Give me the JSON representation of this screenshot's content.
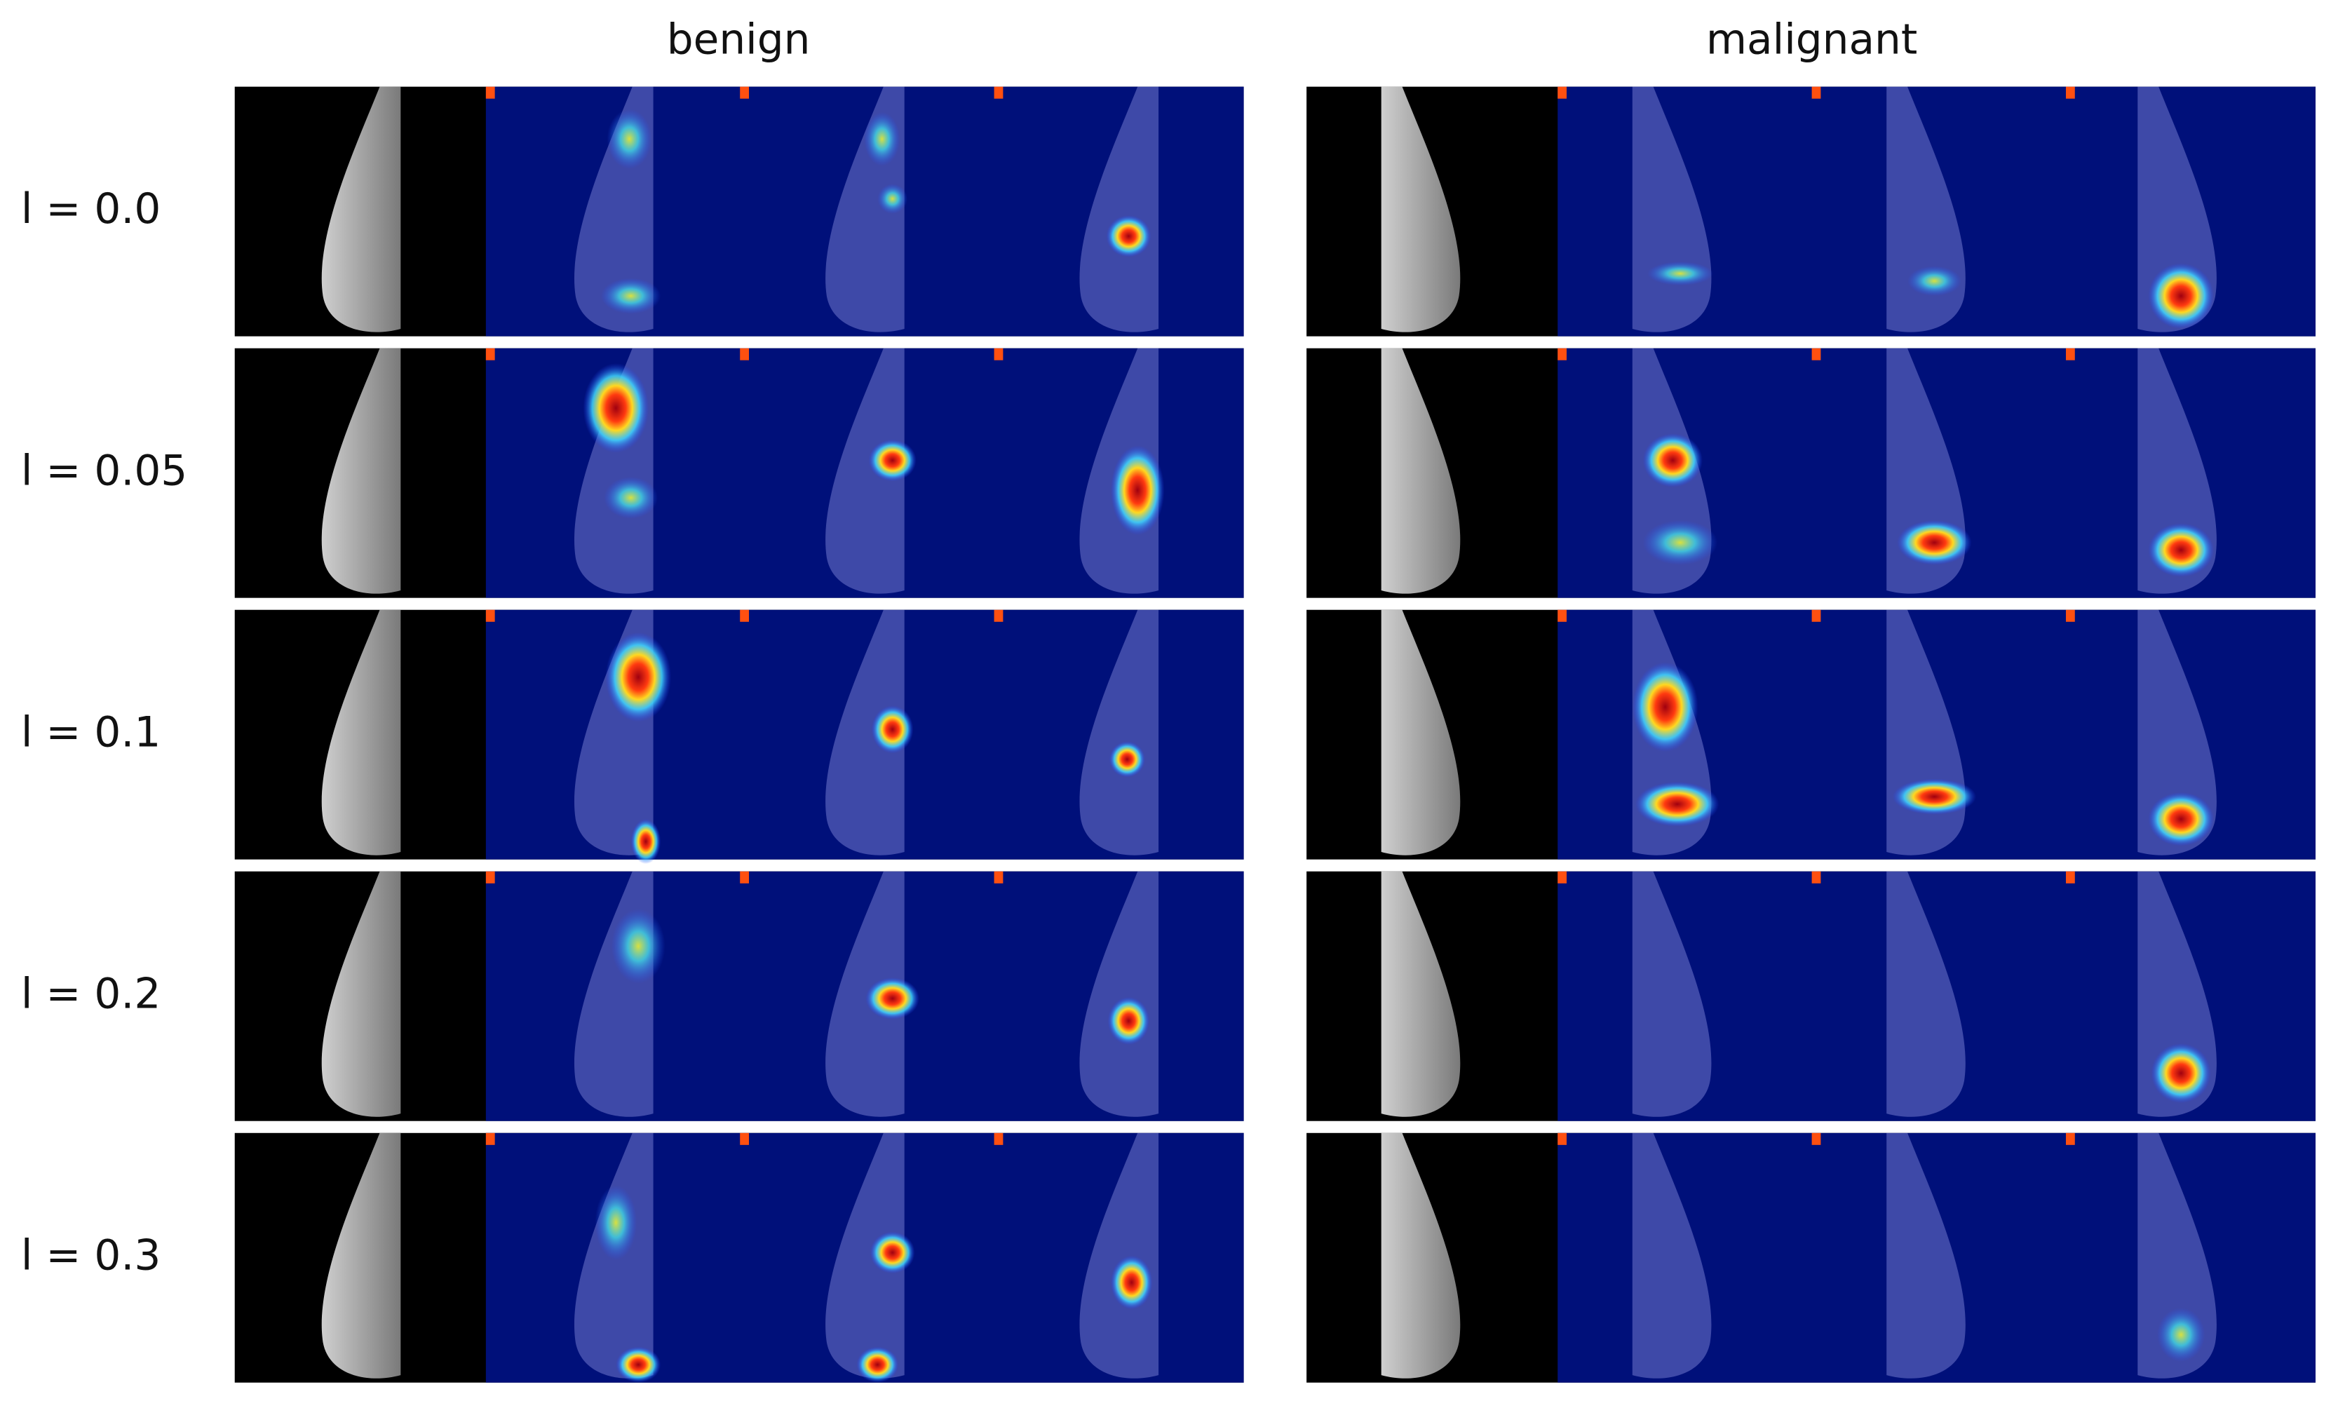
{
  "header": {
    "columns": [
      "benign",
      "malignant"
    ]
  },
  "rows": [
    {
      "label": "l = 0.0"
    },
    {
      "label": "l = 0.05"
    },
    {
      "label": "l = 0.1"
    },
    {
      "label": "l = 0.2"
    },
    {
      "label": "l = 0.3"
    }
  ]
}
